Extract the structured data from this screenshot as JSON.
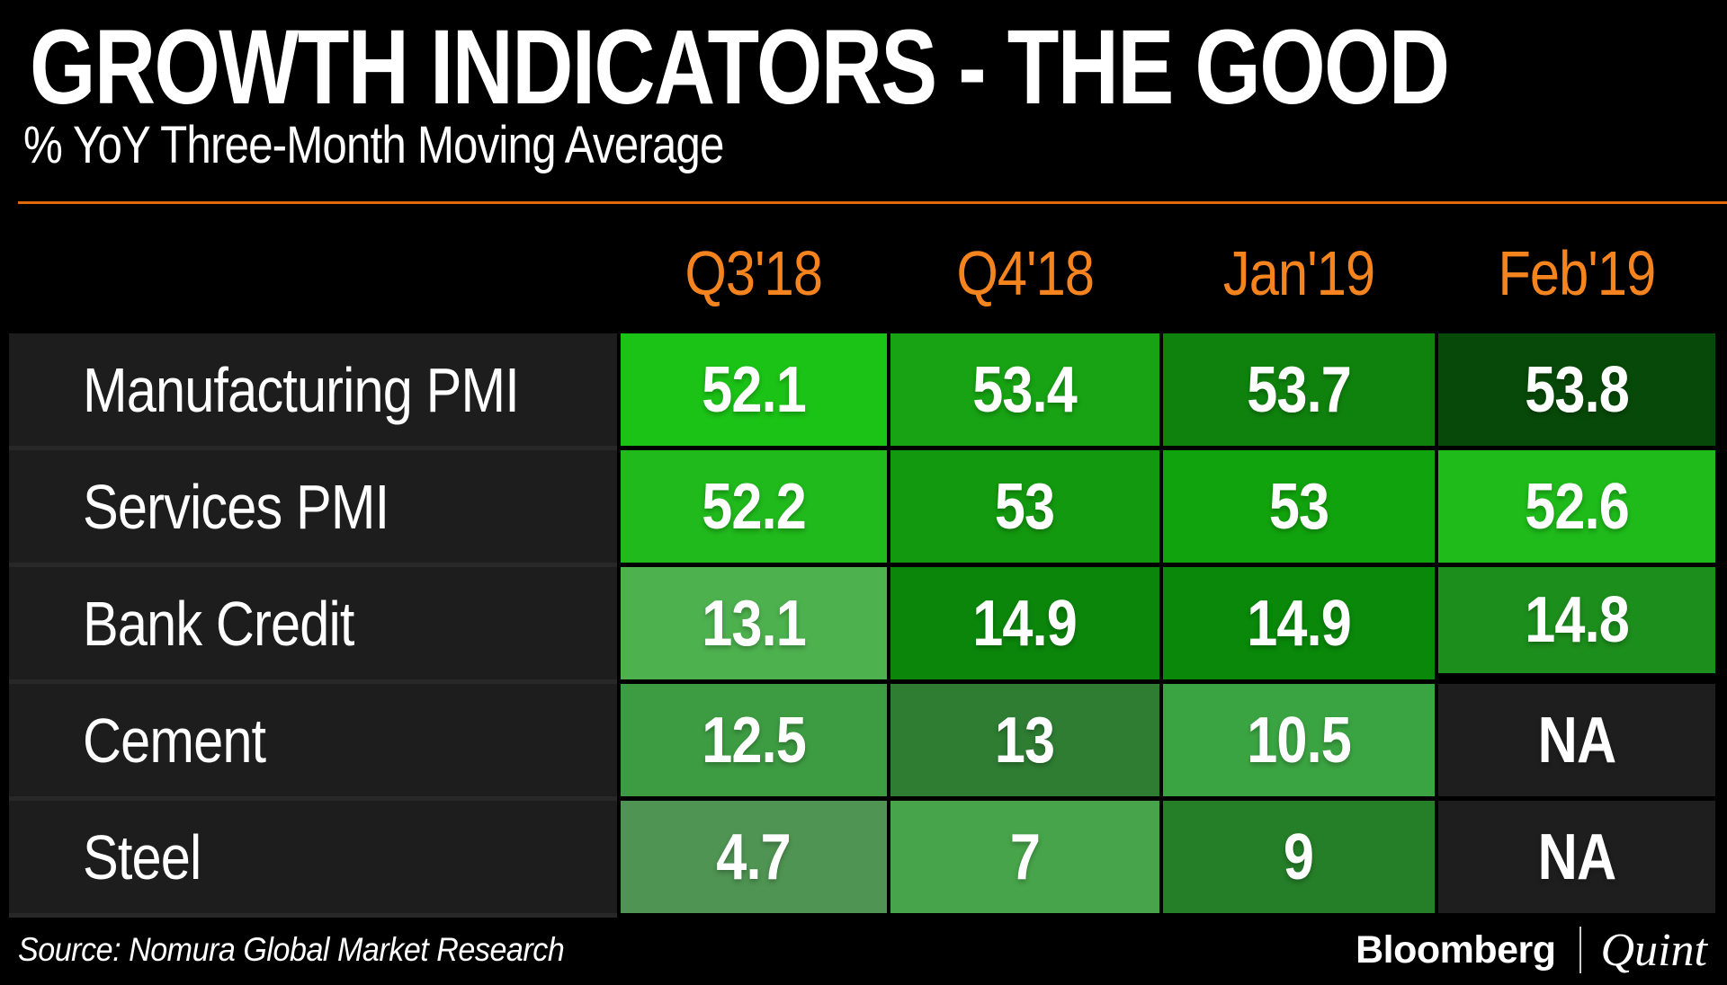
{
  "header": {
    "title": "GROWTH INDICATORS - THE GOOD",
    "subtitle": "% YoY Three-Month Moving Average"
  },
  "colors": {
    "accent_orange_text": "#F5841E",
    "rule_orange": "#E2680C",
    "label_cell_bg": "#1D1D1D",
    "na_cell_bg": "#1E1E1E",
    "row_separator": "#282828",
    "background": "#000000",
    "text": "#FFFFFF"
  },
  "table": {
    "columns": [
      "Q3'18",
      "Q4'18",
      "Jan'19",
      "Feb'19"
    ],
    "rows": [
      {
        "label": "Manufacturing PMI",
        "values": [
          "52.1",
          "53.4",
          "53.7",
          "53.8"
        ],
        "cell_colors": [
          "#1BC316",
          "#17A313",
          "#0F820D",
          "#074908"
        ]
      },
      {
        "label": "Services PMI",
        "values": [
          "52.2",
          "53",
          "53",
          "52.6"
        ],
        "cell_colors": [
          "#20BA1C",
          "#13990F",
          "#11A30D",
          "#1EBB1A"
        ]
      },
      {
        "label": "Bank Credit",
        "values": [
          "13.1",
          "14.9",
          "14.9",
          "14.8"
        ],
        "cell_colors": [
          "#4DB14E",
          "#0B860B",
          "#098809",
          "#1C8E1C"
        ],
        "short_cells": [
          3
        ]
      },
      {
        "label": "Cement",
        "values": [
          "12.5",
          "13",
          "10.5",
          "NA"
        ],
        "cell_colors": [
          "#3D9C42",
          "#2E7D33",
          "#3BA442",
          null
        ]
      },
      {
        "label": "Steel",
        "values": [
          "4.7",
          "7",
          "9",
          "NA"
        ],
        "cell_colors": [
          "#4F9452",
          "#47A44A",
          "#257E28",
          null
        ]
      }
    ]
  },
  "footer": {
    "source": "Source: Nomura Global Market Research",
    "brand_bloomberg": "Bloomberg",
    "brand_quint": "Quint"
  },
  "chart_data": {
    "type": "heatmap",
    "title": "GROWTH INDICATORS - THE GOOD",
    "subtitle": "% YoY Three-Month Moving Average",
    "unit": "% YoY 3-month moving average",
    "categories": [
      "Q3'18",
      "Q4'18",
      "Jan'19",
      "Feb'19"
    ],
    "series": [
      {
        "name": "Manufacturing PMI",
        "values": [
          52.1,
          53.4,
          53.7,
          53.8
        ]
      },
      {
        "name": "Services PMI",
        "values": [
          52.2,
          53,
          53,
          52.6
        ]
      },
      {
        "name": "Bank Credit",
        "values": [
          13.1,
          14.9,
          14.9,
          14.8
        ]
      },
      {
        "name": "Cement",
        "values": [
          12.5,
          13,
          10.5,
          null
        ]
      },
      {
        "name": "Steel",
        "values": [
          4.7,
          7,
          9,
          null
        ]
      }
    ],
    "na_label": "NA",
    "legend_position": "none",
    "grid": false,
    "source": "Source: Nomura Global Market Research"
  }
}
